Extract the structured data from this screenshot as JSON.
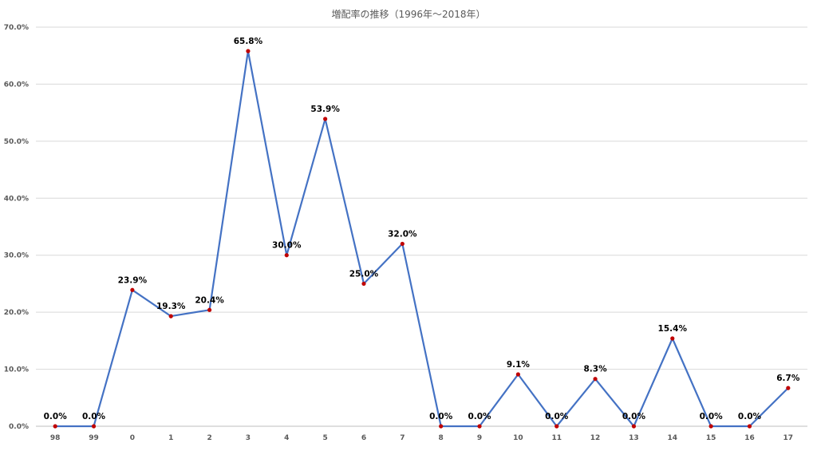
{
  "chart_data": {
    "type": "line",
    "title": "増配率の推移（1996年～2018年）",
    "categories": [
      "98",
      "99",
      "0",
      "1",
      "2",
      "3",
      "4",
      "5",
      "6",
      "7",
      "8",
      "9",
      "10",
      "11",
      "12",
      "13",
      "14",
      "15",
      "16",
      "17"
    ],
    "series": [
      {
        "values": [
          0.0,
          0.0,
          23.9,
          19.3,
          20.4,
          65.8,
          30.0,
          53.9,
          25.0,
          32.0,
          0.0,
          0.0,
          9.1,
          0.0,
          8.3,
          0.0,
          15.4,
          0.0,
          0.0,
          6.7
        ],
        "labels": [
          "0.0%",
          "0.0%",
          "23.9%",
          "19.3%",
          "20.4%",
          "65.8%",
          "30.0%",
          "53.9%",
          "25.0%",
          "32.0%",
          "0.0%",
          "0.0%",
          "9.1%",
          "0.0%",
          "8.3%",
          "0.0%",
          "15.4%",
          "0.0%",
          "0.0%",
          "6.7%"
        ]
      }
    ],
    "ylim": [
      0,
      70
    ],
    "y_ticks": [
      0,
      10,
      20,
      30,
      40,
      50,
      60,
      70
    ],
    "y_tick_labels": [
      "0.0%",
      "10.0%",
      "20.0%",
      "30.0%",
      "40.0%",
      "50.0%",
      "60.0%",
      "70.0%"
    ],
    "xlabel": "",
    "ylabel": "",
    "grid": true,
    "legend": "none",
    "line_color": "#4472C4",
    "marker_color": "#C00000"
  }
}
